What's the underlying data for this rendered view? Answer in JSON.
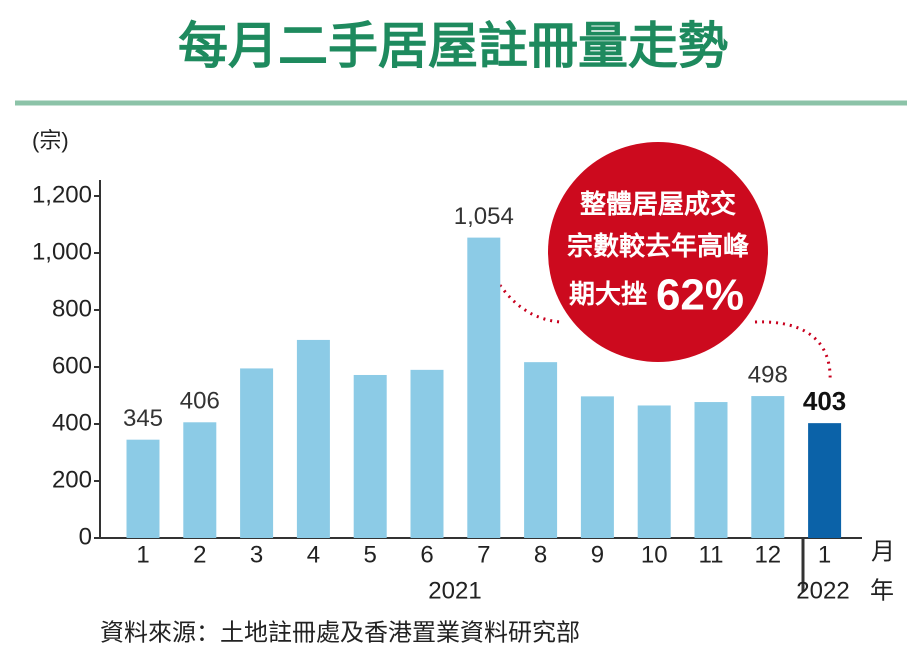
{
  "chart_data": {
    "type": "bar",
    "title": "每月二手居屋註冊量走勢",
    "y_unit": "(宗)",
    "categories": [
      "1",
      "2",
      "3",
      "4",
      "5",
      "6",
      "7",
      "8",
      "9",
      "10",
      "11",
      "12",
      "1"
    ],
    "values": [
      345,
      406,
      595,
      695,
      572,
      590,
      1054,
      617,
      497,
      465,
      477,
      498,
      403
    ],
    "value_labels": [
      "345",
      "406",
      null,
      null,
      null,
      null,
      "1,054",
      null,
      null,
      null,
      null,
      "498",
      "403"
    ],
    "colors": [
      "#8ccbe6",
      "#8ccbe6",
      "#8ccbe6",
      "#8ccbe6",
      "#8ccbe6",
      "#8ccbe6",
      "#8ccbe6",
      "#8ccbe6",
      "#8ccbe6",
      "#8ccbe6",
      "#8ccbe6",
      "#8ccbe6",
      "#0b62a8"
    ],
    "x_unit": "月",
    "years": [
      "2021",
      "2022"
    ],
    "year_unit": "年",
    "ylim": [
      0,
      1200
    ],
    "yticks": [
      0,
      200,
      400,
      600,
      800,
      {
        "value": 1000,
        "label": "1,000"
      },
      {
        "value": 1200,
        "label": "1,200"
      }
    ],
    "annotation": {
      "lines": [
        "整體居屋成交",
        "宗數較去年高峰",
        "期大挫"
      ],
      "highlight": "62%"
    },
    "source": "資料來源：土地註冊處及香港置業資料研究部"
  }
}
